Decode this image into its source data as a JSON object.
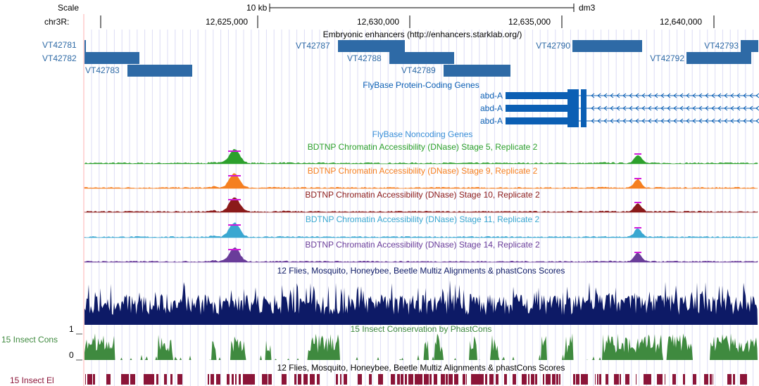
{
  "browser": {
    "scale_label": "Scale",
    "scale_value": "10 kb",
    "assembly": "dm3",
    "chrom_label": "chr3R:",
    "positions": [
      "12,625,000",
      "12,630,000",
      "12,635,000",
      "12,640,000"
    ]
  },
  "enhancers": {
    "title": "Embryonic enhancers (http://enhancers.starklab.org/)",
    "color": "#2e6aa6",
    "items": [
      {
        "name": "VT42781"
      },
      {
        "name": "VT42782"
      },
      {
        "name": "VT42783"
      },
      {
        "name": "VT42787"
      },
      {
        "name": "VT42788"
      },
      {
        "name": "VT42789"
      },
      {
        "name": "VT42790"
      },
      {
        "name": "VT42792"
      },
      {
        "name": "VT42793"
      }
    ]
  },
  "genes": {
    "title": "FlyBase Protein-Coding Genes",
    "color": "#0b5fb4",
    "items": [
      {
        "name": "abd-A"
      },
      {
        "name": "abd-A"
      },
      {
        "name": "abd-A"
      }
    ]
  },
  "noncoding": {
    "title": "FlyBase Noncoding Genes",
    "color": "#3a8fd8"
  },
  "dnase": [
    {
      "title": "BDTNP Chromatin Accessibility (DNase) Stage 5, Replicate 2",
      "color": "#2ca02c"
    },
    {
      "title": "BDTNP Chromatin Accessibility (DNase) Stage 9, Replicate 2",
      "color": "#f57f20"
    },
    {
      "title": "BDTNP Chromatin Accessibility (DNase) Stage 10, Replicate 2",
      "color": "#8b1a1a"
    },
    {
      "title": "BDTNP Chromatin Accessibility (DNase) Stage 11, Replicate 2",
      "color": "#3aa7d1"
    },
    {
      "title": "BDTNP Chromatin Accessibility (DNase) Stage 14, Replicate 2",
      "color": "#6a3d9a"
    }
  ],
  "multiz": {
    "title": "12 Flies, Mosquito, Honeybee, Beetle Multiz Alignments & phastCons Scores",
    "color": "#0d1a66"
  },
  "phastcons": {
    "title": "15 Insect Conservation by PhastCons",
    "side_label": "15 Insect Cons",
    "tick_top": "1",
    "tick_bottom": "0",
    "color": "#3f8a3f"
  },
  "elements": {
    "title": "12 Flies, Mosquito, Honeybee, Beetle Multiz Alignments & phastCons Scores",
    "side_label": "15 Insect El",
    "color": "#8b1538"
  }
}
